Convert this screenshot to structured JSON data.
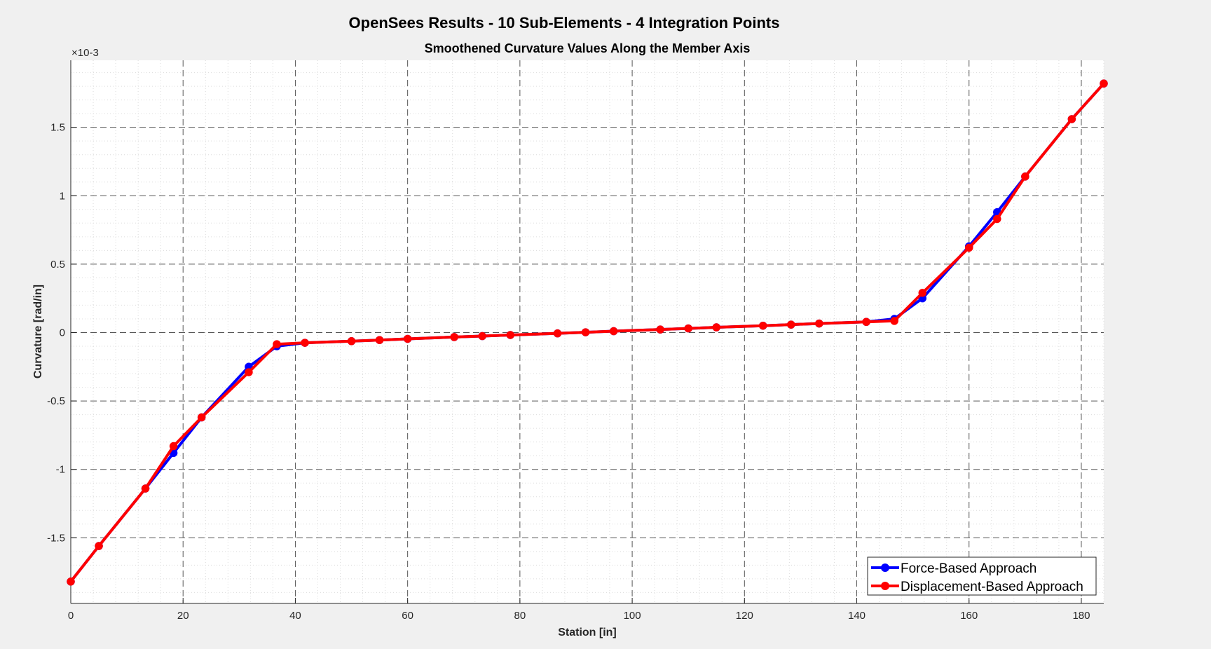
{
  "figure": {
    "title": "OpenSees Results - 10 Sub-Elements - 4 Integration Points"
  },
  "chart_data": {
    "type": "line",
    "title": "Smoothened Curvature Values Along the Member Axis",
    "xlabel": "Station [in]",
    "ylabel": "Curvature [rad/in]",
    "y_exponent_label": "×10-3",
    "xlim": [
      0,
      184
    ],
    "ylim": [
      -1.98,
      1.99
    ],
    "x_ticks": [
      0,
      20,
      40,
      60,
      80,
      100,
      120,
      140,
      160,
      180
    ],
    "x_tick_labels": [
      "0",
      "20",
      "40",
      "60",
      "80",
      "100",
      "120",
      "140",
      "160",
      "180"
    ],
    "y_ticks": [
      -1.5,
      -1,
      -0.5,
      0,
      0.5,
      1,
      1.5
    ],
    "y_tick_labels": [
      "-1.5",
      "-1",
      "-0.5",
      "0",
      "0.5",
      "1",
      "1.5"
    ],
    "grid": true,
    "minor_grid": true,
    "legend_position": "bottom-right",
    "series": [
      {
        "name": "Force-Based Approach",
        "color": "#0000ff",
        "x": [
          0,
          5,
          13.3,
          18.3,
          23.3,
          31.7,
          36.7,
          41.7,
          50,
          55,
          60,
          68.3,
          73.3,
          78.3,
          86.7,
          91.7,
          96.7,
          105,
          110,
          115,
          123.3,
          128.3,
          133.3,
          141.7,
          146.7,
          151.7,
          160,
          165,
          170,
          178.3,
          184
        ],
        "y": [
          -1.82,
          -1.56,
          -1.14,
          -0.88,
          -0.62,
          -0.25,
          -0.1,
          -0.075,
          -0.063,
          -0.055,
          -0.046,
          -0.033,
          -0.026,
          -0.018,
          -0.006,
          0.002,
          0.01,
          0.022,
          0.03,
          0.038,
          0.05,
          0.058,
          0.066,
          0.078,
          0.1,
          0.25,
          0.63,
          0.88,
          1.14,
          1.56,
          1.82
        ]
      },
      {
        "name": "Displacement-Based Approach",
        "color": "#ff0000",
        "x": [
          0,
          5,
          13.3,
          18.3,
          23.3,
          31.7,
          36.7,
          41.7,
          50,
          55,
          60,
          68.3,
          73.3,
          78.3,
          86.7,
          91.7,
          96.7,
          105,
          110,
          115,
          123.3,
          128.3,
          133.3,
          141.7,
          146.7,
          151.7,
          160,
          165,
          170,
          178.3,
          184
        ],
        "y": [
          -1.82,
          -1.56,
          -1.14,
          -0.83,
          -0.62,
          -0.29,
          -0.085,
          -0.075,
          -0.063,
          -0.055,
          -0.046,
          -0.033,
          -0.026,
          -0.018,
          -0.006,
          0.002,
          0.01,
          0.022,
          0.03,
          0.038,
          0.05,
          0.058,
          0.066,
          0.078,
          0.085,
          0.29,
          0.62,
          0.83,
          1.14,
          1.56,
          1.82
        ]
      }
    ]
  }
}
